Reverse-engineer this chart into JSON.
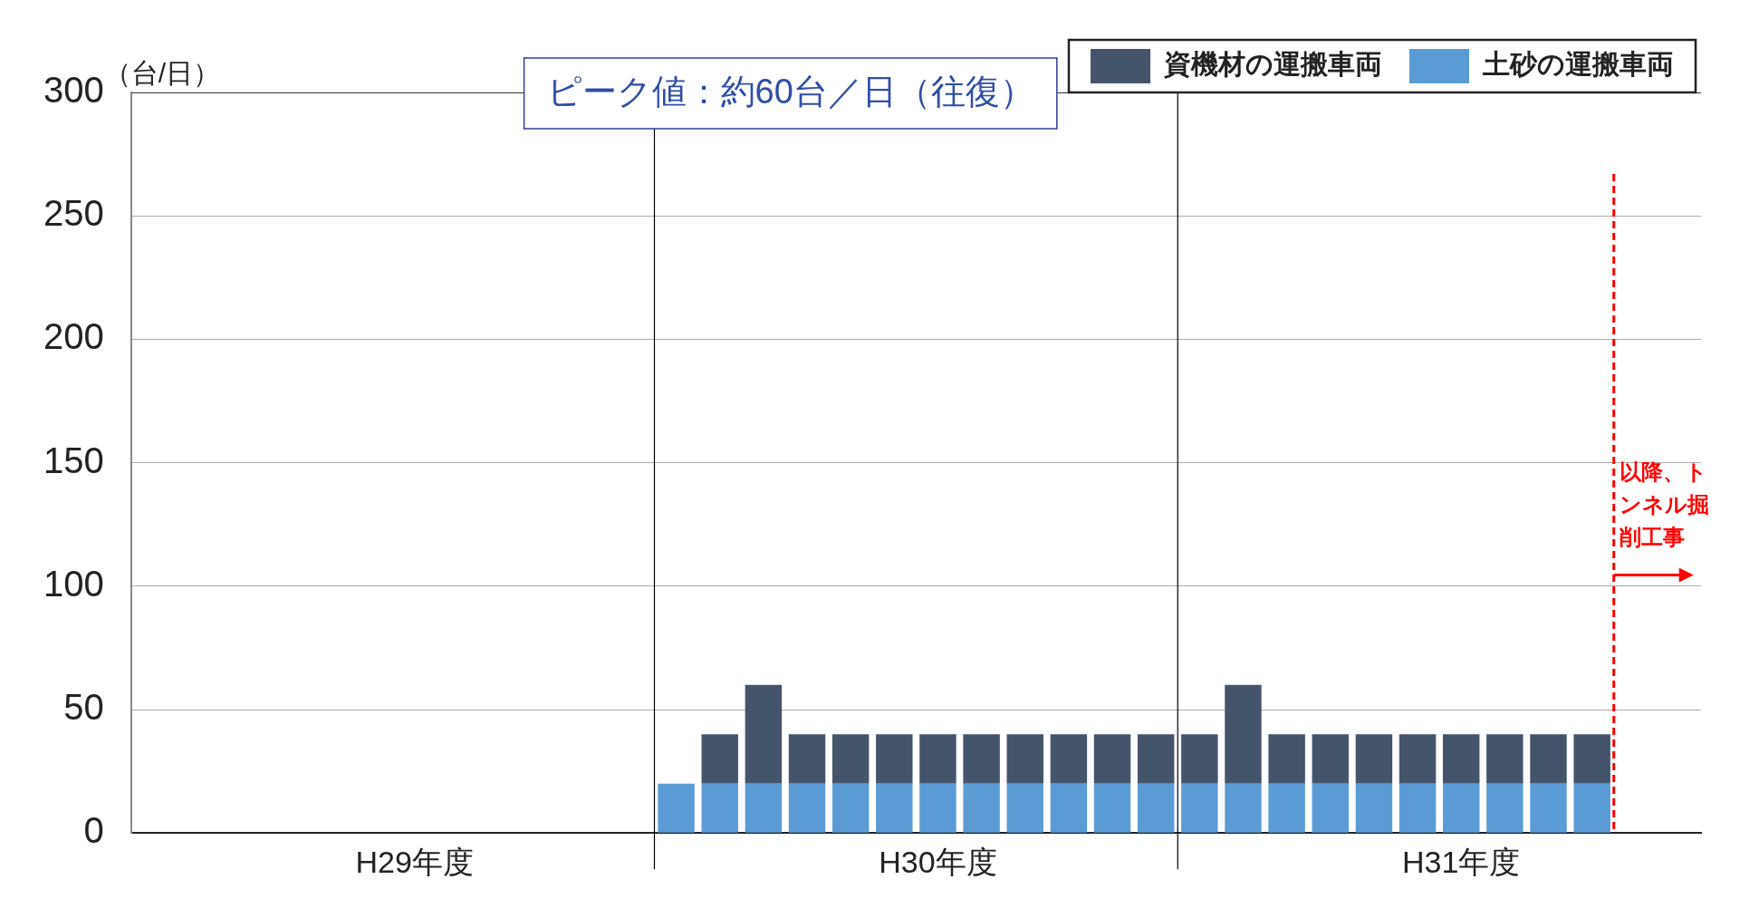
{
  "chart_data": {
    "type": "bar",
    "stacked": true,
    "ylabel": "（台/日）",
    "categories": [
      null,
      null,
      null,
      null,
      null,
      null,
      "H29年度",
      null,
      null,
      null,
      null,
      null,
      null,
      null,
      null,
      null,
      null,
      null,
      "H30年度",
      null,
      null,
      null,
      null,
      null,
      null,
      null,
      null,
      null,
      null,
      null,
      "H31年度",
      null,
      null,
      null,
      null,
      null
    ],
    "series": [
      {
        "name": "土砂の運搬車両",
        "color": "#5b9bd5",
        "values": [
          null,
          null,
          null,
          null,
          null,
          null,
          null,
          null,
          null,
          null,
          null,
          null,
          20,
          20,
          20,
          20,
          20,
          20,
          20,
          20,
          20,
          20,
          20,
          20,
          20,
          20,
          20,
          20,
          20,
          20,
          20,
          20,
          20,
          20,
          null,
          null
        ]
      },
      {
        "name": "資機材の運搬車両",
        "color": "#44546a",
        "values": [
          null,
          null,
          null,
          null,
          null,
          null,
          null,
          null,
          null,
          null,
          null,
          null,
          null,
          20,
          40,
          20,
          20,
          20,
          20,
          20,
          20,
          20,
          20,
          20,
          20,
          40,
          20,
          20,
          20,
          20,
          20,
          20,
          20,
          20,
          null,
          null
        ]
      }
    ],
    "ylim": [
      0,
      300
    ],
    "yticks": [
      0,
      50,
      100,
      150,
      200,
      250,
      300
    ],
    "grid": "y",
    "legend": "top right",
    "annotations": [
      "ピーク値：約60台／日（往復）",
      "以降、トンネル掘削工事"
    ]
  }
}
